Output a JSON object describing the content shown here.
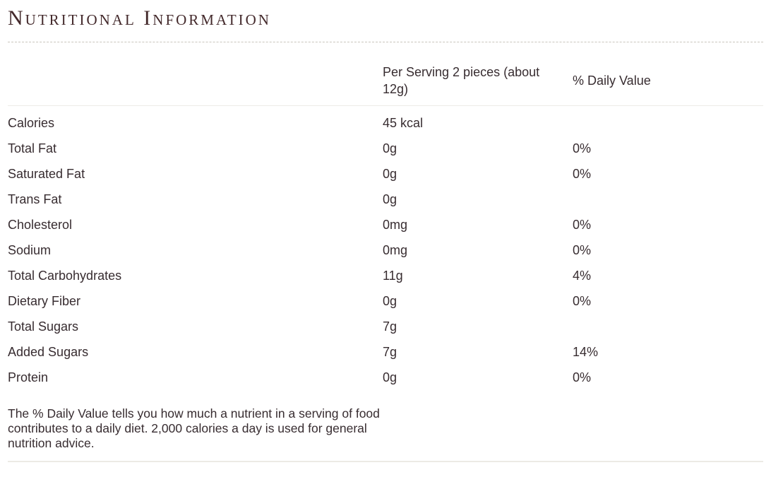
{
  "page": {
    "title": "Nutritional Information"
  },
  "table": {
    "columns": {
      "serving": "Per Serving 2 pieces (about 12g)",
      "daily_value": "% Daily Value"
    },
    "rows": [
      {
        "name": "Calories",
        "amount": "45 kcal",
        "dv": ""
      },
      {
        "name": "Total Fat",
        "amount": "0g",
        "dv": "0%"
      },
      {
        "name": "Saturated Fat",
        "amount": "0g",
        "dv": "0%"
      },
      {
        "name": "Trans Fat",
        "amount": "0g",
        "dv": ""
      },
      {
        "name": "Cholesterol",
        "amount": "0mg",
        "dv": "0%"
      },
      {
        "name": "Sodium",
        "amount": "0mg",
        "dv": "0%"
      },
      {
        "name": "Total Carbohydrates",
        "amount": "11g",
        "dv": "4%"
      },
      {
        "name": "Dietary Fiber",
        "amount": "0g",
        "dv": "0%"
      },
      {
        "name": "Total Sugars",
        "amount": "7g",
        "dv": ""
      },
      {
        "name": "Added Sugars",
        "amount": "7g",
        "dv": "14%"
      },
      {
        "name": "Protein",
        "amount": "0g",
        "dv": "0%"
      }
    ],
    "footnote": "The % Daily Value tells you how much a nutrient in a serving of food contributes to a daily diet. 2,000 calories a day is used for general nutrition advice."
  },
  "colors": {
    "title_text": "#43292b",
    "body_text": "#372c30",
    "dashed_divider": "#c9c5bc",
    "solid_divider": "#edebe7",
    "background": "#ffffff"
  }
}
